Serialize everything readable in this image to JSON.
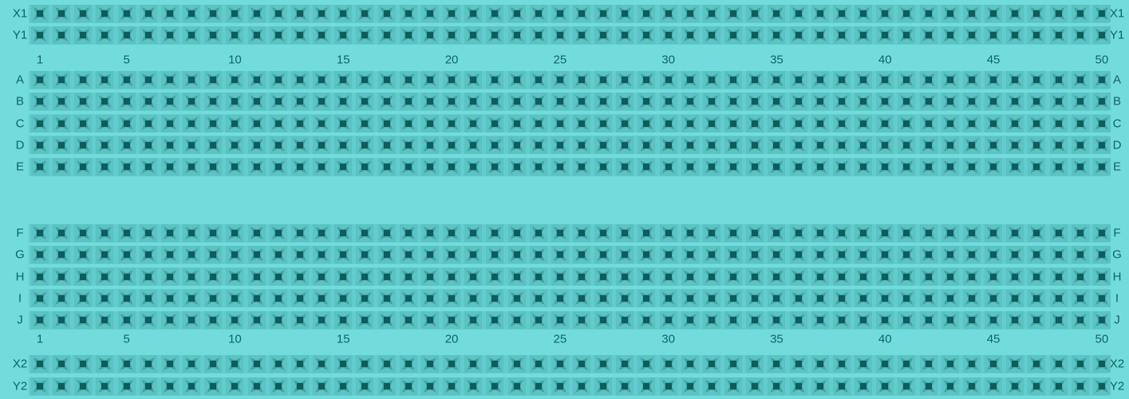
{
  "board": {
    "name": "breadboard",
    "top_rails": [
      "X1",
      "Y1"
    ],
    "terminal_rows_top": [
      "A",
      "B",
      "C",
      "D",
      "E"
    ],
    "terminal_rows_bottom": [
      "F",
      "G",
      "H",
      "I",
      "J"
    ],
    "bottom_rails": [
      "X2",
      "Y2"
    ],
    "column_count": 50,
    "column_labels": [
      "1",
      "5",
      "10",
      "15",
      "20",
      "25",
      "30",
      "35",
      "40",
      "45",
      "50"
    ],
    "colors": {
      "board": "#72dcdc",
      "hole_dark": "#0f5c5c",
      "label": "#0f6464"
    }
  }
}
